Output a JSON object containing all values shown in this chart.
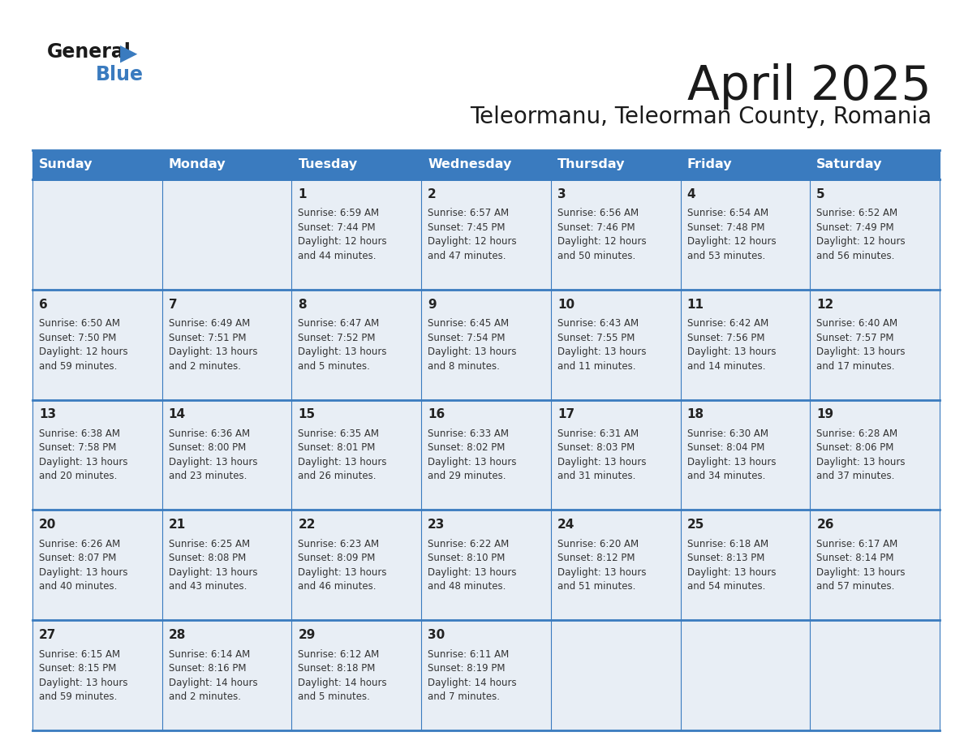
{
  "title": "April 2025",
  "subtitle": "Teleormanu, Teleorman County, Romania",
  "days_of_week": [
    "Sunday",
    "Monday",
    "Tuesday",
    "Wednesday",
    "Thursday",
    "Friday",
    "Saturday"
  ],
  "header_bg": "#3a7bbf",
  "header_text_color": "#ffffff",
  "cell_bg": "#e8eef5",
  "border_color": "#3a7bbf",
  "day_number_color": "#222222",
  "text_color": "#333333",
  "title_color": "#1a1a1a",
  "subtitle_color": "#1a1a1a",
  "logo_general_color": "#1a1a1a",
  "logo_blue_color": "#3a7bbf",
  "calendar_data": [
    [
      {
        "day": null,
        "info": null
      },
      {
        "day": null,
        "info": null
      },
      {
        "day": 1,
        "info": "Sunrise: 6:59 AM\nSunset: 7:44 PM\nDaylight: 12 hours\nand 44 minutes."
      },
      {
        "day": 2,
        "info": "Sunrise: 6:57 AM\nSunset: 7:45 PM\nDaylight: 12 hours\nand 47 minutes."
      },
      {
        "day": 3,
        "info": "Sunrise: 6:56 AM\nSunset: 7:46 PM\nDaylight: 12 hours\nand 50 minutes."
      },
      {
        "day": 4,
        "info": "Sunrise: 6:54 AM\nSunset: 7:48 PM\nDaylight: 12 hours\nand 53 minutes."
      },
      {
        "day": 5,
        "info": "Sunrise: 6:52 AM\nSunset: 7:49 PM\nDaylight: 12 hours\nand 56 minutes."
      }
    ],
    [
      {
        "day": 6,
        "info": "Sunrise: 6:50 AM\nSunset: 7:50 PM\nDaylight: 12 hours\nand 59 minutes."
      },
      {
        "day": 7,
        "info": "Sunrise: 6:49 AM\nSunset: 7:51 PM\nDaylight: 13 hours\nand 2 minutes."
      },
      {
        "day": 8,
        "info": "Sunrise: 6:47 AM\nSunset: 7:52 PM\nDaylight: 13 hours\nand 5 minutes."
      },
      {
        "day": 9,
        "info": "Sunrise: 6:45 AM\nSunset: 7:54 PM\nDaylight: 13 hours\nand 8 minutes."
      },
      {
        "day": 10,
        "info": "Sunrise: 6:43 AM\nSunset: 7:55 PM\nDaylight: 13 hours\nand 11 minutes."
      },
      {
        "day": 11,
        "info": "Sunrise: 6:42 AM\nSunset: 7:56 PM\nDaylight: 13 hours\nand 14 minutes."
      },
      {
        "day": 12,
        "info": "Sunrise: 6:40 AM\nSunset: 7:57 PM\nDaylight: 13 hours\nand 17 minutes."
      }
    ],
    [
      {
        "day": 13,
        "info": "Sunrise: 6:38 AM\nSunset: 7:58 PM\nDaylight: 13 hours\nand 20 minutes."
      },
      {
        "day": 14,
        "info": "Sunrise: 6:36 AM\nSunset: 8:00 PM\nDaylight: 13 hours\nand 23 minutes."
      },
      {
        "day": 15,
        "info": "Sunrise: 6:35 AM\nSunset: 8:01 PM\nDaylight: 13 hours\nand 26 minutes."
      },
      {
        "day": 16,
        "info": "Sunrise: 6:33 AM\nSunset: 8:02 PM\nDaylight: 13 hours\nand 29 minutes."
      },
      {
        "day": 17,
        "info": "Sunrise: 6:31 AM\nSunset: 8:03 PM\nDaylight: 13 hours\nand 31 minutes."
      },
      {
        "day": 18,
        "info": "Sunrise: 6:30 AM\nSunset: 8:04 PM\nDaylight: 13 hours\nand 34 minutes."
      },
      {
        "day": 19,
        "info": "Sunrise: 6:28 AM\nSunset: 8:06 PM\nDaylight: 13 hours\nand 37 minutes."
      }
    ],
    [
      {
        "day": 20,
        "info": "Sunrise: 6:26 AM\nSunset: 8:07 PM\nDaylight: 13 hours\nand 40 minutes."
      },
      {
        "day": 21,
        "info": "Sunrise: 6:25 AM\nSunset: 8:08 PM\nDaylight: 13 hours\nand 43 minutes."
      },
      {
        "day": 22,
        "info": "Sunrise: 6:23 AM\nSunset: 8:09 PM\nDaylight: 13 hours\nand 46 minutes."
      },
      {
        "day": 23,
        "info": "Sunrise: 6:22 AM\nSunset: 8:10 PM\nDaylight: 13 hours\nand 48 minutes."
      },
      {
        "day": 24,
        "info": "Sunrise: 6:20 AM\nSunset: 8:12 PM\nDaylight: 13 hours\nand 51 minutes."
      },
      {
        "day": 25,
        "info": "Sunrise: 6:18 AM\nSunset: 8:13 PM\nDaylight: 13 hours\nand 54 minutes."
      },
      {
        "day": 26,
        "info": "Sunrise: 6:17 AM\nSunset: 8:14 PM\nDaylight: 13 hours\nand 57 minutes."
      }
    ],
    [
      {
        "day": 27,
        "info": "Sunrise: 6:15 AM\nSunset: 8:15 PM\nDaylight: 13 hours\nand 59 minutes."
      },
      {
        "day": 28,
        "info": "Sunrise: 6:14 AM\nSunset: 8:16 PM\nDaylight: 14 hours\nand 2 minutes."
      },
      {
        "day": 29,
        "info": "Sunrise: 6:12 AM\nSunset: 8:18 PM\nDaylight: 14 hours\nand 5 minutes."
      },
      {
        "day": 30,
        "info": "Sunrise: 6:11 AM\nSunset: 8:19 PM\nDaylight: 14 hours\nand 7 minutes."
      },
      {
        "day": null,
        "info": null
      },
      {
        "day": null,
        "info": null
      },
      {
        "day": null,
        "info": null
      }
    ]
  ]
}
